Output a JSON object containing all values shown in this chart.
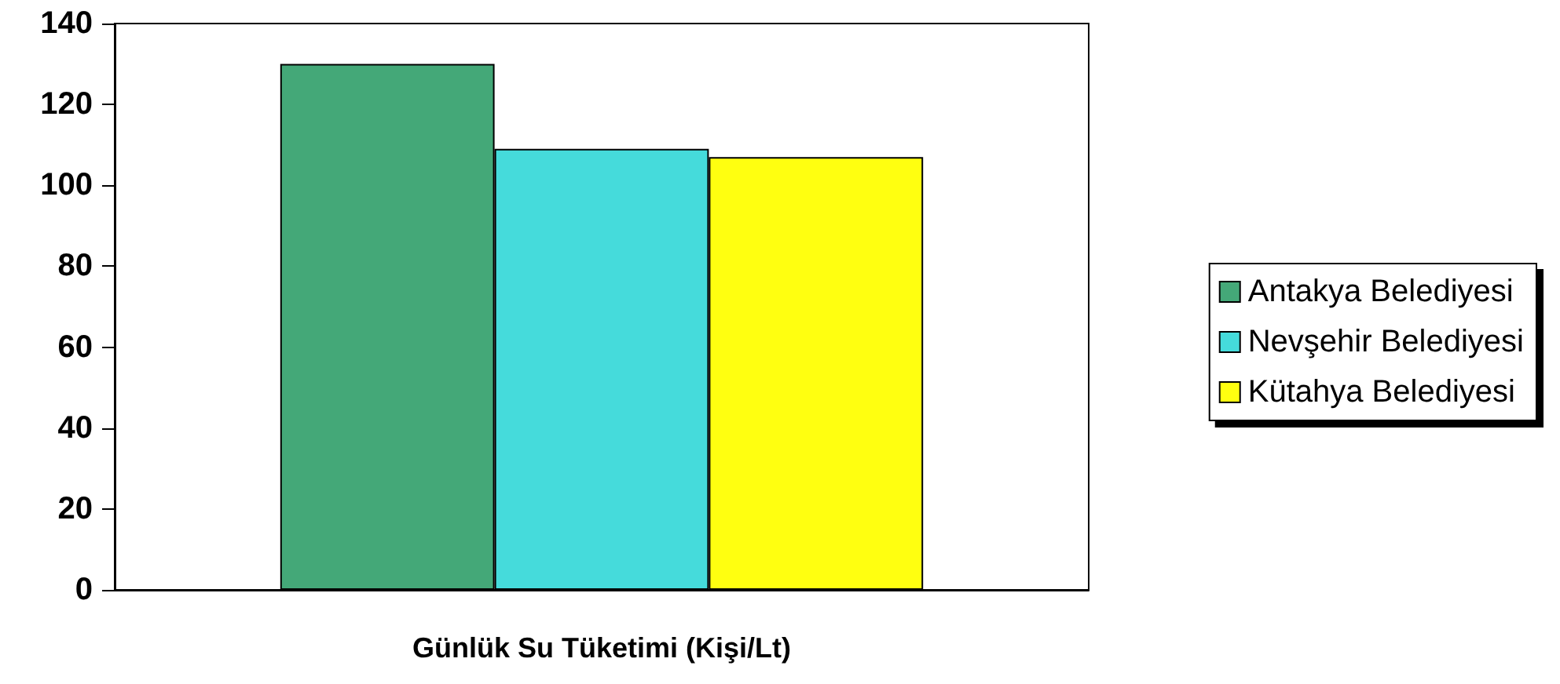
{
  "chart_data": {
    "type": "bar",
    "categories": [
      "Günlük Su Tüketimi (Kişi/Lt)"
    ],
    "series": [
      {
        "name": "Antakya Belediyesi",
        "color": "#44a878",
        "values": [
          130
        ]
      },
      {
        "name": "Nevşehir Belediyesi",
        "color": "#45dbdb",
        "values": [
          109
        ]
      },
      {
        "name": "Kütahya Belediyesi",
        "color": "#ffff10",
        "values": [
          107
        ]
      }
    ],
    "ylim": [
      0,
      140
    ],
    "yticks": [
      0,
      20,
      40,
      60,
      80,
      100,
      120,
      140
    ],
    "grid": false,
    "legend": "right"
  }
}
